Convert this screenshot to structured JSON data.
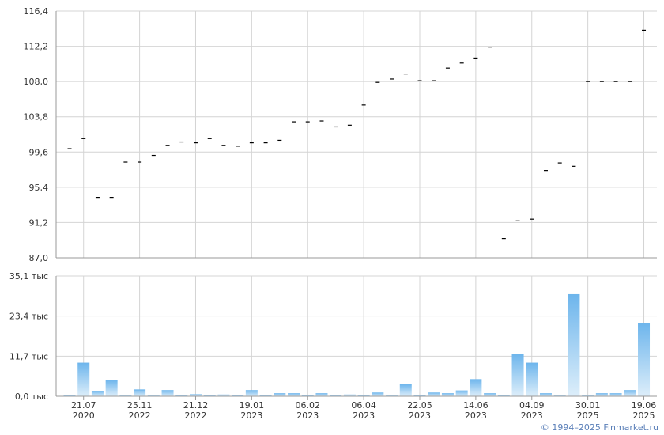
{
  "chart_data": [
    {
      "type": "scatter",
      "marker": "dash",
      "ylim": [
        87.0,
        116.4
      ],
      "yticks": [
        "116,4",
        "112,2",
        "108,0",
        "103,8",
        "99,6",
        "95,4",
        "91,2",
        "87,0"
      ],
      "grid": true,
      "values": [
        100.0,
        101.2,
        94.2,
        94.2,
        98.4,
        98.4,
        99.2,
        100.4,
        100.8,
        100.7,
        101.2,
        100.4,
        100.3,
        100.7,
        100.7,
        101.0,
        103.2,
        103.2,
        103.3,
        102.6,
        102.8,
        105.2,
        107.9,
        108.3,
        108.9,
        108.1,
        108.1,
        109.6,
        110.2,
        110.8,
        112.1,
        89.3,
        91.4,
        91.6,
        97.4,
        98.3,
        97.9,
        108.0,
        108.0,
        108.0,
        108.0,
        114.1
      ]
    },
    {
      "type": "bar",
      "ylim": [
        0,
        35.1
      ],
      "unit": "тыс",
      "yticks": [
        "35,1 тыс",
        "23,4 тыс",
        "11,7 тыс",
        "0,0 тыс"
      ],
      "grid": true,
      "values": [
        0.3,
        9.8,
        1.6,
        4.7,
        0.4,
        2.0,
        0.4,
        1.8,
        0.3,
        0.6,
        0.3,
        0.5,
        0.3,
        1.8,
        0.3,
        0.9,
        0.9,
        0.3,
        0.9,
        0.3,
        0.5,
        0.3,
        1.1,
        0.4,
        3.5,
        0.3,
        1.1,
        0.9,
        1.7,
        5.0,
        0.9,
        0.3,
        12.3,
        9.8,
        0.9,
        0.4,
        29.8,
        0.4,
        0.9,
        0.9,
        1.8,
        21.4
      ],
      "color_top": "#6db5ec",
      "color_bottom": "#ddeefa"
    }
  ],
  "x_axis": {
    "ticks": [
      {
        "day": "21.07",
        "year": "2020"
      },
      {
        "day": "25.11",
        "year": "2022"
      },
      {
        "day": "21.12",
        "year": "2022"
      },
      {
        "day": "19.01",
        "year": "2023"
      },
      {
        "day": "06.02",
        "year": "2023"
      },
      {
        "day": "06.04",
        "year": "2023"
      },
      {
        "day": "22.05",
        "year": "2023"
      },
      {
        "day": "14.06",
        "year": "2023"
      },
      {
        "day": "04.09",
        "year": "2023"
      },
      {
        "day": "30.01",
        "year": "2025"
      },
      {
        "day": "19.06",
        "year": "2025"
      }
    ]
  },
  "colors": {
    "grid": "#d4d4d4",
    "axis": "#999999",
    "marker": "#000000"
  },
  "copyright": "© 1994–2025 Finmarket.ru"
}
